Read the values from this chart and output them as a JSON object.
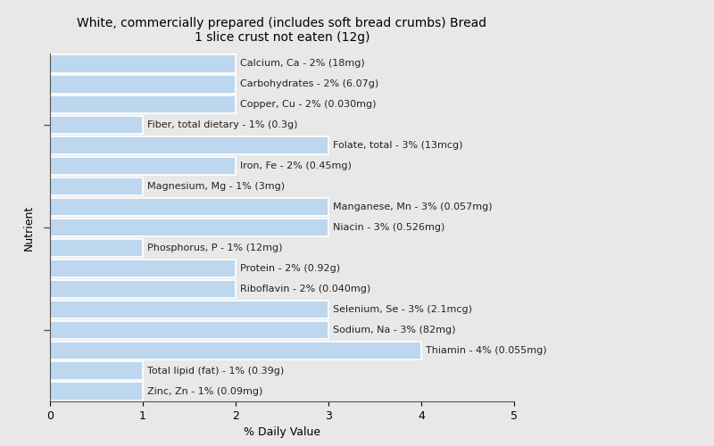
{
  "title": "White, commercially prepared (includes soft bread crumbs) Bread\n1 slice crust not eaten (12g)",
  "xlabel": "% Daily Value",
  "ylabel": "Nutrient",
  "nutrients": [
    {
      "name": "Calcium, Ca - 2% (18mg)",
      "value": 2
    },
    {
      "name": "Carbohydrates - 2% (6.07g)",
      "value": 2
    },
    {
      "name": "Copper, Cu - 2% (0.030mg)",
      "value": 2
    },
    {
      "name": "Fiber, total dietary - 1% (0.3g)",
      "value": 1
    },
    {
      "name": "Folate, total - 3% (13mcg)",
      "value": 3
    },
    {
      "name": "Iron, Fe - 2% (0.45mg)",
      "value": 2
    },
    {
      "name": "Magnesium, Mg - 1% (3mg)",
      "value": 1
    },
    {
      "name": "Manganese, Mn - 3% (0.057mg)",
      "value": 3
    },
    {
      "name": "Niacin - 3% (0.526mg)",
      "value": 3
    },
    {
      "name": "Phosphorus, P - 1% (12mg)",
      "value": 1
    },
    {
      "name": "Protein - 2% (0.92g)",
      "value": 2
    },
    {
      "name": "Riboflavin - 2% (0.040mg)",
      "value": 2
    },
    {
      "name": "Selenium, Se - 3% (2.1mcg)",
      "value": 3
    },
    {
      "name": "Sodium, Na - 3% (82mg)",
      "value": 3
    },
    {
      "name": "Thiamin - 4% (0.055mg)",
      "value": 4
    },
    {
      "name": "Total lipid (fat) - 1% (0.39g)",
      "value": 1
    },
    {
      "name": "Zinc, Zn - 1% (0.09mg)",
      "value": 1
    }
  ],
  "bar_color": "#bdd7ee",
  "bar_edgecolor": "#ffffff",
  "background_color": "#e8e8e8",
  "plot_background_color": "#e8e8e8",
  "xlim": [
    0,
    5
  ],
  "xticks": [
    0,
    1,
    2,
    3,
    4,
    5
  ],
  "title_fontsize": 10,
  "axis_label_fontsize": 9,
  "tick_fontsize": 9,
  "bar_label_fontsize": 8
}
